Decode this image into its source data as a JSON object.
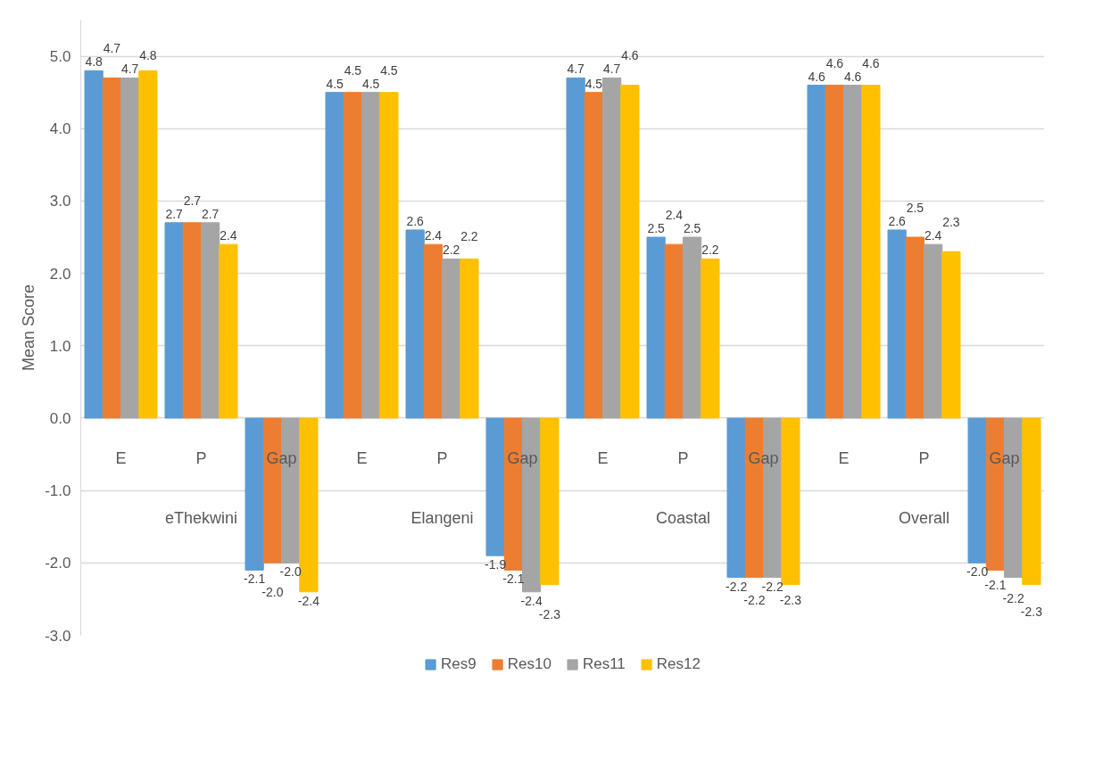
{
  "chart_data": {
    "type": "bar",
    "ylabel": "Mean Score",
    "categories": [
      "E",
      "P",
      "Gap",
      "E",
      "P",
      "Gap",
      "E",
      "P",
      "Gap",
      "E",
      "P",
      "Gap"
    ],
    "annotations": [
      "eThekwini",
      "Elangeni",
      "Coastal",
      "Overall"
    ],
    "series": [
      {
        "name": "Res9",
        "color": "#5b9bd5",
        "values": [
          4.8,
          2.7,
          -2.1,
          4.5,
          2.6,
          -1.9,
          4.7,
          2.5,
          -2.2,
          4.6,
          2.6,
          -2.0
        ],
        "value_labels": [
          "4.8",
          "2.7",
          "-2.1",
          "4.5",
          "2.6",
          "-1.9",
          "4.7",
          "2.5",
          "-2.2",
          "4.6",
          "2.6",
          "-2.0"
        ]
      },
      {
        "name": "Res10",
        "color": "#ed7d31",
        "values": [
          4.7,
          2.7,
          -2.0,
          4.5,
          2.4,
          -2.1,
          4.5,
          2.4,
          -2.2,
          4.6,
          2.5,
          -2.1
        ],
        "value_labels": [
          "4.7",
          "2.7",
          "-2.0",
          "4.5",
          "2.4",
          "-2.1",
          "4.5",
          "2.4",
          "-2.2",
          "4.6",
          "2.5",
          "-2.1"
        ]
      },
      {
        "name": "Res11",
        "color": "#a5a5a5",
        "values": [
          4.7,
          2.7,
          -2.0,
          4.5,
          2.2,
          -2.4,
          4.7,
          2.5,
          -2.2,
          4.6,
          2.4,
          -2.2
        ],
        "value_labels": [
          "4.7",
          "2.7",
          "-2.0",
          "4.5",
          "2.2",
          "-2.4",
          "4.7",
          "2.5",
          "-2.2",
          "4.6",
          "2.4",
          "-2.2"
        ]
      },
      {
        "name": "Res12",
        "color": "#ffc000",
        "values": [
          4.8,
          2.4,
          -2.4,
          4.5,
          2.2,
          -2.3,
          4.6,
          2.2,
          -2.3,
          4.6,
          2.3,
          -2.3
        ],
        "value_labels": [
          "4.8",
          "2.4",
          "-2.4",
          "4.5",
          "2.2",
          "-2.3",
          "4.6",
          "2.2",
          "-2.3",
          "4.6",
          "2.3",
          "-2.3"
        ]
      }
    ],
    "ylim": [
      -3.0,
      5.5
    ],
    "yticks": [
      {
        "value": -3,
        "label": "-3.0"
      },
      {
        "value": -2,
        "label": "-2.0"
      },
      {
        "value": -1,
        "label": "-1.0"
      },
      {
        "value": 0,
        "label": "0.0"
      },
      {
        "value": 1,
        "label": "1.0"
      },
      {
        "value": 2,
        "label": "2.0"
      },
      {
        "value": 3,
        "label": "3.0"
      },
      {
        "value": 4,
        "label": "4.0"
      },
      {
        "value": 5,
        "label": "5.0"
      }
    ],
    "grid": "y",
    "legend": "bottom"
  }
}
